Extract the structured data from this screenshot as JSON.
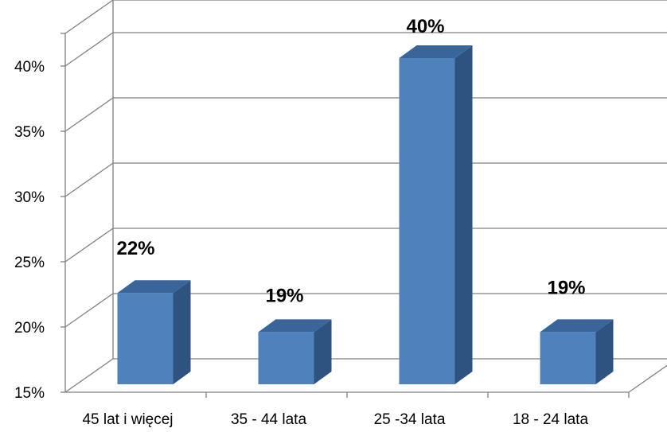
{
  "chart_data": {
    "type": "bar",
    "categories": [
      "45 lat i więcej",
      "35 - 44 lata",
      "25 -34 lata",
      "18 - 24 lata"
    ],
    "values": [
      22,
      19,
      40,
      19
    ],
    "data_labels": [
      "22%",
      "19%",
      "40%",
      "19%"
    ],
    "yticks": [
      15,
      20,
      25,
      30,
      35,
      40
    ],
    "ytick_labels": [
      "15%",
      "20%",
      "25%",
      "30%",
      "35%",
      "40%"
    ],
    "ylim": [
      15,
      42.5
    ],
    "grid": true,
    "style": "3d-column",
    "colors": {
      "front": "#4F81BD",
      "side": "#2F5380",
      "top": "#3A659A",
      "grid": "#808080"
    }
  }
}
